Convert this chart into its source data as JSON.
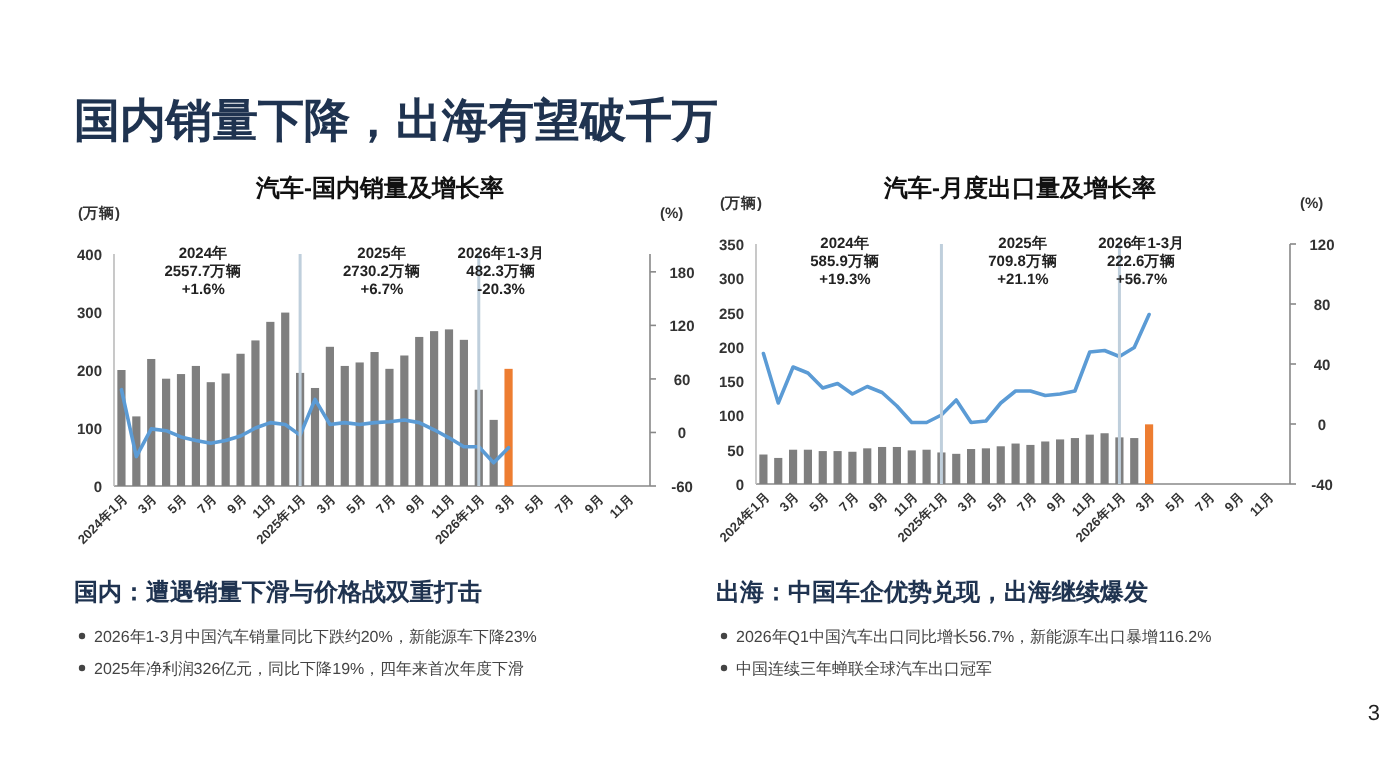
{
  "chart_data": [
    {
      "type": "other",
      "title": "国内销量下降，出海有望破千万"
    },
    {
      "type": "bar",
      "title": "汽车-国内销量及增长率",
      "ylabel": "(万辆)",
      "y2label": "(%)",
      "categories": [
        "2024年1月",
        null,
        "3月",
        null,
        "5月",
        null,
        "7月",
        null,
        "9月",
        null,
        "11月",
        null,
        "2025年1月",
        null,
        "3月",
        null,
        "5月",
        null,
        "7月",
        null,
        "9月",
        null,
        "11月",
        null,
        "2026年1月",
        null,
        "3月",
        null,
        "5月",
        null,
        "7月",
        null,
        "9月",
        null,
        "11月",
        null
      ],
      "ylim": [
        0,
        400
      ],
      "yticks": [
        0,
        100,
        200,
        300,
        400
      ],
      "y2lim": [
        -60,
        200
      ],
      "y2ticks": [
        -60,
        0,
        60,
        120,
        180
      ],
      "series": [
        {
          "type": "bar",
          "colors": [
            "#7f7f7f",
            "#7f7f7f",
            "#7f7f7f",
            "#7f7f7f",
            "#7f7f7f",
            "#7f7f7f",
            "#7f7f7f",
            "#7f7f7f",
            "#7f7f7f",
            "#7f7f7f",
            "#7f7f7f",
            "#7f7f7f",
            "#7f7f7f",
            "#7f7f7f",
            "#7f7f7f",
            "#7f7f7f",
            "#7f7f7f",
            "#7f7f7f",
            "#7f7f7f",
            "#7f7f7f",
            "#7f7f7f",
            "#7f7f7f",
            "#7f7f7f",
            "#7f7f7f",
            "#7f7f7f",
            "#7f7f7f",
            "#ed7d31",
            null,
            null,
            null,
            null,
            null,
            null,
            null,
            null,
            null
          ],
          "values": [
            200,
            120,
            219,
            185,
            193,
            207,
            179,
            194,
            228,
            251,
            283,
            299,
            195,
            169,
            240,
            207,
            213,
            231,
            202,
            225,
            257,
            267,
            270,
            252,
            166,
            114,
            202,
            null,
            null,
            null,
            null,
            null,
            null,
            null,
            null,
            null
          ]
        },
        {
          "type": "line",
          "axis": "y2",
          "color": "#5b9bd5",
          "values": [
            48,
            -27,
            4,
            2,
            -5,
            -9,
            -12,
            -9,
            -4,
            5,
            11,
            9,
            -3,
            37,
            9,
            11,
            9,
            11,
            12,
            14,
            11,
            3,
            -6,
            -16,
            -16,
            -34,
            -17,
            null,
            null,
            null,
            null,
            null,
            null,
            null,
            null,
            null
          ]
        }
      ],
      "ref_lines": [
        {
          "axis": "x",
          "value": "2025年1月",
          "color": "#bfcfdc"
        },
        {
          "axis": "x",
          "value": "2026年1月",
          "color": "#bfcfdc"
        }
      ],
      "annotations": [
        "2024年\n2557.7万辆\n+1.6%",
        "2025年\n2730.2万辆\n+6.7%",
        "2026年1-3月\n482.3万辆\n-20.3%",
        "国内：遭遇销量下滑与价格战双重打击",
        "2026年1-3月中国汽车销量同比下跌约20%，新能源车下降23%",
        "2025年净利润326亿元，同比下降19%，四年来首次年度下滑"
      ]
    },
    {
      "type": "bar",
      "title": "汽车-月度出口量及增长率",
      "ylabel": "(万辆)",
      "y2label": "(%)",
      "categories": [
        "2024年1月",
        null,
        "3月",
        null,
        "5月",
        null,
        "7月",
        null,
        "9月",
        null,
        "11月",
        null,
        "2025年1月",
        null,
        "3月",
        null,
        "5月",
        null,
        "7月",
        null,
        "9月",
        null,
        "11月",
        null,
        "2026年1月",
        null,
        "3月",
        null,
        "5月",
        null,
        "7月",
        null,
        "9月",
        null,
        "11月",
        null
      ],
      "ylim": [
        0,
        350
      ],
      "yticks": [
        0,
        50,
        100,
        150,
        200,
        250,
        300,
        350
      ],
      "y2lim": [
        -40,
        120
      ],
      "y2ticks": [
        -40,
        0,
        40,
        80,
        120
      ],
      "series": [
        {
          "type": "bar",
          "colors": [
            "#7f7f7f",
            "#7f7f7f",
            "#7f7f7f",
            "#7f7f7f",
            "#7f7f7f",
            "#7f7f7f",
            "#7f7f7f",
            "#7f7f7f",
            "#7f7f7f",
            "#7f7f7f",
            "#7f7f7f",
            "#7f7f7f",
            "#7f7f7f",
            "#7f7f7f",
            "#7f7f7f",
            "#7f7f7f",
            "#7f7f7f",
            "#7f7f7f",
            "#7f7f7f",
            "#7f7f7f",
            "#7f7f7f",
            "#7f7f7f",
            "#7f7f7f",
            "#7f7f7f",
            "#7f7f7f",
            "#7f7f7f",
            "#ed7d31",
            null,
            null,
            null,
            null,
            null,
            null,
            null,
            null,
            null
          ],
          "values": [
            43,
            38,
            50,
            50,
            48,
            48,
            47,
            52,
            54,
            54,
            49,
            50,
            46,
            44,
            51,
            52,
            55,
            59,
            57,
            62,
            65,
            67,
            72,
            74,
            68,
            67,
            87,
            null,
            null,
            null,
            null,
            null,
            null,
            null,
            null,
            null
          ]
        },
        {
          "type": "line",
          "axis": "y2",
          "color": "#5b9bd5",
          "values": [
            47,
            14,
            38,
            34,
            24,
            27,
            20,
            25,
            21,
            12,
            1,
            1,
            6,
            16,
            1,
            2,
            14,
            22,
            22,
            19,
            20,
            22,
            48,
            49,
            45,
            51,
            73,
            null,
            null,
            null,
            null,
            null,
            null,
            null,
            null,
            null
          ]
        }
      ],
      "ref_lines": [
        {
          "axis": "x",
          "value": "2025年1月",
          "color": "#bfcfdc"
        },
        {
          "axis": "x",
          "value": "2026年1月",
          "color": "#bfcfdc"
        }
      ],
      "annotations": [
        "2024年\n585.9万辆\n+19.3%",
        "2025年\n709.8万辆\n+21.1%",
        "2026年1-3月\n222.6万辆\n+56.7%",
        "出海：中国车企优势兑现，出海继续爆发",
        "2026年Q1中国汽车出口同比增长56.7%，新能源车出口暴增116.2%",
        "中国连续三年蝉联全球汽车出口冠军",
        "3"
      ]
    }
  ]
}
